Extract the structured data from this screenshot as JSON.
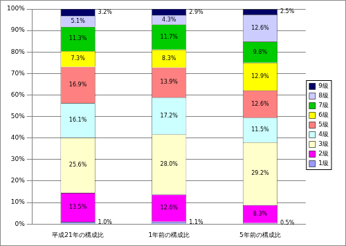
{
  "chart_data": {
    "type": "bar",
    "stacked": true,
    "grid": true,
    "legend": "right",
    "data_labels": true,
    "categories": [
      "平成21年の構成比",
      "1年前の構成比",
      "5年前の構成比"
    ],
    "ylim": [
      0,
      100
    ],
    "yticks": [
      {
        "value": 0,
        "label": "0%"
      },
      {
        "value": 10,
        "label": "10%"
      },
      {
        "value": 20,
        "label": "20%"
      },
      {
        "value": 30,
        "label": "30%"
      },
      {
        "value": 40,
        "label": "40%"
      },
      {
        "value": 50,
        "label": "50%"
      },
      {
        "value": 60,
        "label": "60%"
      },
      {
        "value": 70,
        "label": "70%"
      },
      {
        "value": 80,
        "label": "80%"
      },
      {
        "value": 90,
        "label": "90%"
      },
      {
        "value": 100,
        "label": "100%"
      }
    ],
    "series": [
      {
        "name": "1級",
        "color": "#9999ff",
        "values": [
          1.0,
          1.1,
          0.5
        ],
        "value_labels": [
          "1.0%",
          "1.1%",
          "0.5%"
        ]
      },
      {
        "name": "2級",
        "color": "#ff00ff",
        "values": [
          13.5,
          12.6,
          8.3
        ],
        "value_labels": [
          "13.5%",
          "12.6%",
          "8.3%"
        ]
      },
      {
        "name": "3級",
        "color": "#ffffcc",
        "values": [
          25.6,
          28.0,
          29.2
        ],
        "value_labels": [
          "25.6%",
          "28.0%",
          "29.2%"
        ]
      },
      {
        "name": "4級",
        "color": "#ccffff",
        "values": [
          16.1,
          17.2,
          11.5
        ],
        "value_labels": [
          "16.1%",
          "17.2%",
          "11.5%"
        ]
      },
      {
        "name": "5級",
        "color": "#ff8080",
        "values": [
          16.9,
          13.9,
          12.6
        ],
        "value_labels": [
          "16.9%",
          "13.9%",
          "12.6%"
        ]
      },
      {
        "name": "6級",
        "color": "#ffff00",
        "values": [
          7.3,
          8.3,
          12.9
        ],
        "value_labels": [
          "7.3%",
          "8.3%",
          "12.9%"
        ]
      },
      {
        "name": "7級",
        "color": "#00cc00",
        "values": [
          11.3,
          11.7,
          9.8
        ],
        "value_labels": [
          "11.3%",
          "11.7%",
          "9.8%"
        ]
      },
      {
        "name": "8級",
        "color": "#ccccff",
        "values": [
          5.1,
          4.3,
          12.6
        ],
        "value_labels": [
          "5.1%",
          "4.3%",
          "12.6%"
        ]
      },
      {
        "name": "9級",
        "color": "#000066",
        "values": [
          3.2,
          2.9,
          2.5
        ],
        "value_labels": [
          "3.2%",
          "2.9%",
          "2.5%"
        ]
      }
    ]
  }
}
